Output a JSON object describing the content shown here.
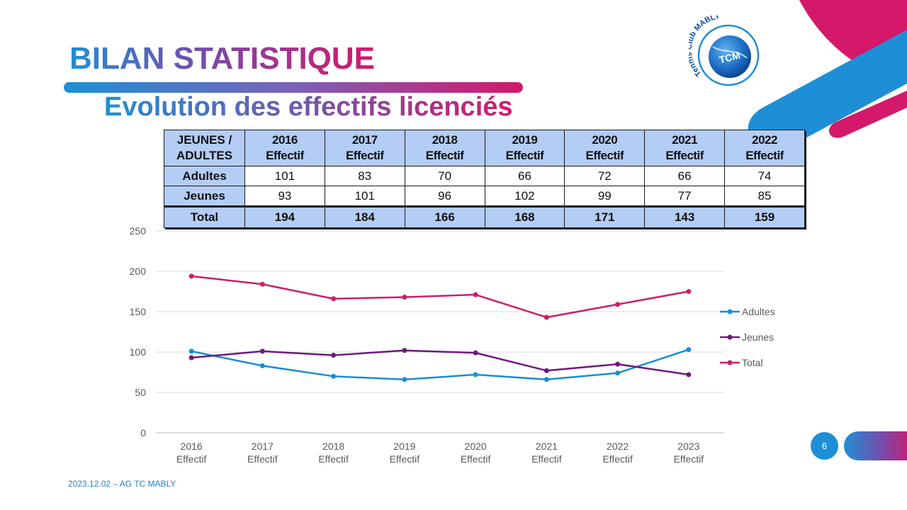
{
  "title": "BILAN STATISTIQUE",
  "subtitle": "Evolution des effectifs licenciés",
  "logo": {
    "arc_text": "Tennis Club MABLY",
    "badge_text": "TCM",
    "colors": {
      "blue": "#1e7fd0",
      "dark_blue": "#0b4d9a",
      "ring": "#1e8fd6"
    }
  },
  "table": {
    "corner_lines": [
      "JEUNES /",
      "ADULTES"
    ],
    "columns": [
      {
        "year": "2016",
        "label": "Effectif"
      },
      {
        "year": "2017",
        "label": "Effectif"
      },
      {
        "year": "2018",
        "label": "Effectif"
      },
      {
        "year": "2019",
        "label": "Effectif"
      },
      {
        "year": "2020",
        "label": "Effectif"
      },
      {
        "year": "2021",
        "label": "Effectif"
      },
      {
        "year": "2022",
        "label": "Effectif"
      }
    ],
    "rows": [
      {
        "label": "Adultes",
        "values": [
          "101",
          "83",
          "70",
          "66",
          "72",
          "66",
          "74"
        ]
      },
      {
        "label": "Jeunes",
        "values": [
          "93",
          "101",
          "96",
          "102",
          "99",
          "77",
          "85"
        ]
      },
      {
        "label": "Total",
        "values": [
          "194",
          "184",
          "166",
          "168",
          "171",
          "143",
          "159"
        ]
      }
    ]
  },
  "chart_data": {
    "type": "line",
    "title": "",
    "xlabel": "",
    "ylabel": "",
    "categories": [
      "2016 Effectif",
      "2017 Effectif",
      "2018 Effectif",
      "2019 Effectif",
      "2020 Effectif",
      "2021 Effectif",
      "2022 Effectif",
      "2023 Effectif"
    ],
    "ylim": [
      0,
      250
    ],
    "yticks": [
      0,
      50,
      100,
      150,
      200,
      250
    ],
    "grid": true,
    "legend_position": "right",
    "series": [
      {
        "name": "Adultes",
        "color": "#1a8ed2",
        "values": [
          101,
          83,
          70,
          66,
          72,
          66,
          74,
          103
        ]
      },
      {
        "name": "Jeunes",
        "color": "#6e1a7c",
        "values": [
          93,
          101,
          96,
          102,
          99,
          77,
          85,
          72
        ]
      },
      {
        "name": "Total",
        "color": "#cc1f6a",
        "values": [
          194,
          184,
          166,
          168,
          171,
          143,
          159,
          175
        ]
      }
    ]
  },
  "footer": "2023.12.02 – AG TC MABLY",
  "page_number": "6",
  "colors": {
    "blue": "#1e8fd6",
    "pink": "#d4186a",
    "purple": "#7a4aa8",
    "table_header": "#b4cdf5"
  }
}
